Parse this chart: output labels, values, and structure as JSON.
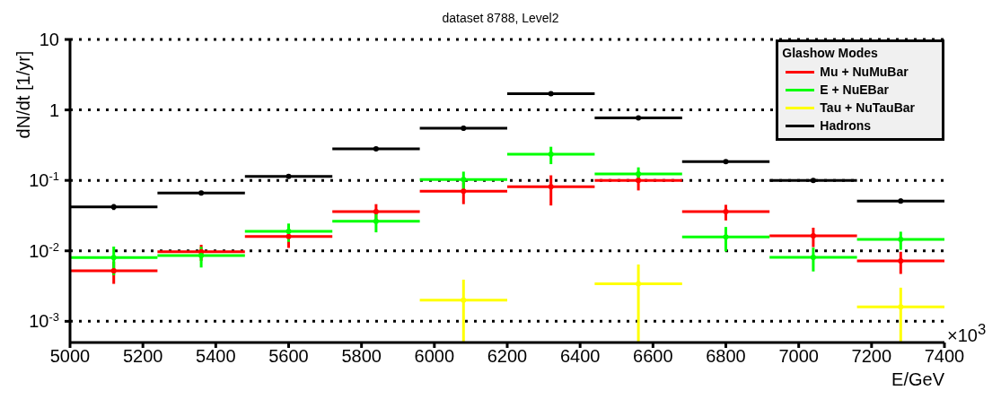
{
  "chart_data": {
    "type": "scatter",
    "marker": "circle",
    "title": "dataset 8788, Level2",
    "xlabel": "E/GeV",
    "ylabel": "dN/dt [1/yr]",
    "legend_title": "Glashow Modes",
    "annotations": [
      "×10$^{3}$"
    ],
    "x": [
      5120,
      5360,
      5600,
      5840,
      6080,
      6320,
      6560,
      6800,
      7040,
      7280
    ],
    "series": [
      {
        "name": "Mu + NuMuBar",
        "color": "#ff0000",
        "values": [
          0.0052,
          0.0097,
          0.016,
          0.036,
          0.07,
          0.081,
          0.1,
          0.036,
          0.0163,
          0.0072
        ],
        "errors": [
          0.0018,
          0.0025,
          0.005,
          0.01,
          0.024,
          0.037,
          0.028,
          0.009,
          0.005,
          0.0025
        ],
        "xerrors": [
          120,
          120,
          120,
          120,
          120,
          120,
          120,
          120,
          120,
          120
        ]
      },
      {
        "name": "E + NuEBar",
        "color": "#00ff00",
        "values": [
          0.008,
          0.0086,
          0.0189,
          0.0263,
          0.103,
          0.235,
          0.123,
          0.0158,
          0.0081,
          0.0145
        ],
        "errors": [
          0.0035,
          0.0028,
          0.0055,
          0.008,
          0.03,
          0.065,
          0.03,
          0.006,
          0.003,
          0.0042
        ],
        "xerrors": [
          120,
          120,
          120,
          120,
          120,
          120,
          120,
          120,
          120,
          120
        ]
      },
      {
        "name": "Tau + NuTauBar",
        "color": "#ffff00",
        "values": [
          null,
          null,
          null,
          null,
          0.002,
          null,
          0.0034,
          null,
          null,
          0.0016
        ],
        "errors": [
          null,
          null,
          null,
          null,
          [
            0.0005,
            0.0039
          ],
          null,
          [
            0.0005,
            0.0064
          ],
          null,
          null,
          [
            0.0005,
            0.003
          ]
        ],
        "xerrors": [
          null,
          null,
          null,
          null,
          120,
          null,
          120,
          null,
          null,
          120
        ]
      },
      {
        "name": "Hadrons",
        "color": "#000000",
        "values": [
          0.042,
          0.066,
          0.114,
          0.28,
          0.55,
          1.7,
          0.77,
          0.185,
          0.1,
          0.051
        ],
        "errors": [
          0.004,
          0.005,
          0.006,
          0.012,
          0.04,
          0.1,
          0.04,
          0.012,
          0.006,
          0.004
        ],
        "xerrors": [
          120,
          120,
          120,
          120,
          120,
          120,
          120,
          120,
          120,
          120
        ]
      }
    ],
    "xlim": [
      5000,
      7400
    ],
    "xticks": [
      5000,
      5200,
      5400,
      5600,
      5800,
      6000,
      6200,
      6400,
      6600,
      6800,
      7000,
      7200,
      7400
    ],
    "ylim": [
      0.0005,
      10
    ],
    "yticks": [
      {
        "value": 0.001,
        "label": "10$^{-3}$"
      },
      {
        "value": 0.01,
        "label": "10$^{-2}$"
      },
      {
        "value": 0.1,
        "label": "10$^{-1}$"
      },
      1,
      10
    ],
    "log": "y",
    "grid": "y",
    "legend": "top right"
  }
}
